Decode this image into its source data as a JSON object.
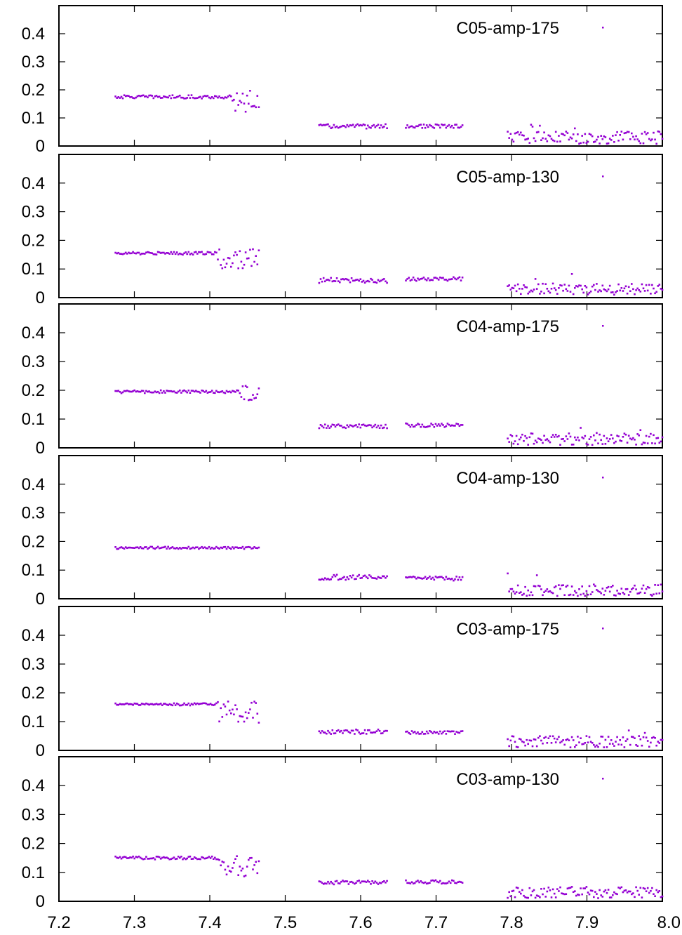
{
  "figure": {
    "x_ticks": [
      "7.2",
      "7.3",
      "7.4",
      "7.5",
      "7.6",
      "7.7",
      "7.8",
      "7.9",
      "8.0"
    ],
    "y_ticks": [
      "0",
      "0.1",
      "0.2",
      "0.3",
      "0.4"
    ],
    "marker_color": "#9400d3"
  },
  "chart_data": [
    {
      "type": "scatter",
      "series": [
        {
          "name": "C05-amp-175"
        }
      ],
      "xlim": [
        7.2,
        8.0
      ],
      "ylim": [
        0,
        0.5
      ],
      "segments": [
        {
          "x_range": [
            7.275,
            7.465
          ],
          "mean": 0.175,
          "spread": 0.006,
          "tail_start": 7.43,
          "tail_low": 0.12,
          "tail_high": 0.2
        },
        {
          "x_range": [
            7.545,
            7.635
          ],
          "mean": 0.07,
          "spread": 0.008
        },
        {
          "x_range": [
            7.66,
            7.735
          ],
          "mean": 0.07,
          "spread": 0.007
        },
        {
          "x_range": [
            7.795,
            8.0
          ],
          "mean": 0.03,
          "spread": 0.022,
          "max": 0.095
        }
      ]
    },
    {
      "type": "scatter",
      "series": [
        {
          "name": "C05-amp-130"
        }
      ],
      "xlim": [
        7.2,
        8.0
      ],
      "ylim": [
        0,
        0.5
      ],
      "segments": [
        {
          "x_range": [
            7.275,
            7.465
          ],
          "mean": 0.155,
          "spread": 0.005,
          "tail_start": 7.41,
          "tail_low": 0.1,
          "tail_high": 0.17
        },
        {
          "x_range": [
            7.545,
            7.635
          ],
          "mean": 0.06,
          "spread": 0.009
        },
        {
          "x_range": [
            7.66,
            7.735
          ],
          "mean": 0.065,
          "spread": 0.007
        },
        {
          "x_range": [
            7.795,
            8.0
          ],
          "mean": 0.03,
          "spread": 0.02,
          "max": 0.115
        }
      ]
    },
    {
      "type": "scatter",
      "series": [
        {
          "name": "C04-amp-175"
        }
      ],
      "xlim": [
        7.2,
        8.0
      ],
      "ylim": [
        0,
        0.5
      ],
      "segments": [
        {
          "x_range": [
            7.275,
            7.465
          ],
          "mean": 0.195,
          "spread": 0.005,
          "tail_start": 7.44,
          "tail_low": 0.165,
          "tail_high": 0.22
        },
        {
          "x_range": [
            7.545,
            7.635
          ],
          "mean": 0.075,
          "spread": 0.007
        },
        {
          "x_range": [
            7.66,
            7.735
          ],
          "mean": 0.078,
          "spread": 0.007
        },
        {
          "x_range": [
            7.795,
            8.0
          ],
          "mean": 0.03,
          "spread": 0.02,
          "max": 0.08
        }
      ]
    },
    {
      "type": "scatter",
      "series": [
        {
          "name": "C04-amp-130"
        }
      ],
      "xlim": [
        7.2,
        8.0
      ],
      "ylim": [
        0,
        0.5
      ],
      "segments": [
        {
          "x_range": [
            7.275,
            7.465
          ],
          "mean": 0.178,
          "spread": 0.004
        },
        {
          "x_range": [
            7.545,
            7.635
          ],
          "mean": 0.075,
          "spread": 0.009
        },
        {
          "x_range": [
            7.66,
            7.735
          ],
          "mean": 0.07,
          "spread": 0.008
        },
        {
          "x_range": [
            7.795,
            8.0
          ],
          "mean": 0.03,
          "spread": 0.02,
          "max": 0.095
        }
      ]
    },
    {
      "type": "scatter",
      "series": [
        {
          "name": "C03-amp-175"
        }
      ],
      "xlim": [
        7.2,
        8.0
      ],
      "ylim": [
        0,
        0.5
      ],
      "segments": [
        {
          "x_range": [
            7.275,
            7.465
          ],
          "mean": 0.16,
          "spread": 0.004,
          "tail_start": 7.41,
          "tail_low": 0.095,
          "tail_high": 0.17
        },
        {
          "x_range": [
            7.545,
            7.635
          ],
          "mean": 0.065,
          "spread": 0.008
        },
        {
          "x_range": [
            7.66,
            7.735
          ],
          "mean": 0.062,
          "spread": 0.006
        },
        {
          "x_range": [
            7.795,
            8.0
          ],
          "mean": 0.03,
          "spread": 0.02,
          "max": 0.085
        }
      ]
    },
    {
      "type": "scatter",
      "series": [
        {
          "name": "C03-amp-130"
        }
      ],
      "xlim": [
        7.2,
        8.0
      ],
      "ylim": [
        0,
        0.5
      ],
      "segments": [
        {
          "x_range": [
            7.275,
            7.465
          ],
          "mean": 0.15,
          "spread": 0.005,
          "tail_start": 7.41,
          "tail_low": 0.085,
          "tail_high": 0.16
        },
        {
          "x_range": [
            7.545,
            7.635
          ],
          "mean": 0.065,
          "spread": 0.007
        },
        {
          "x_range": [
            7.66,
            7.735
          ],
          "mean": 0.067,
          "spread": 0.006
        },
        {
          "x_range": [
            7.795,
            8.0
          ],
          "mean": 0.03,
          "spread": 0.02,
          "max": 0.075
        }
      ]
    }
  ]
}
